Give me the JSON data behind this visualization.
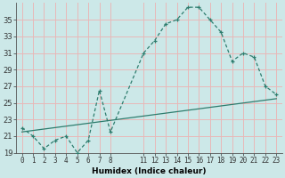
{
  "xlabel": "Humidex (Indice chaleur)",
  "bg_color": "#cce8e8",
  "grid_color": "#e8b8b8",
  "line_color": "#2e7d6e",
  "series1_x": [
    0,
    1,
    2,
    3,
    4,
    5,
    6,
    7,
    8,
    11,
    12,
    13,
    14,
    15,
    16,
    17,
    18,
    19,
    20,
    21,
    22,
    23
  ],
  "series1_y": [
    22.0,
    21.0,
    19.5,
    20.5,
    21.0,
    19.0,
    20.5,
    26.5,
    21.5,
    31.0,
    32.5,
    34.5,
    35.0,
    36.5,
    36.5,
    35.0,
    33.5,
    30.0,
    31.0,
    30.5,
    27.0,
    26.0
  ],
  "series2_x": [
    0,
    23
  ],
  "series2_y": [
    21.5,
    25.5
  ],
  "ylim_min": 19,
  "ylim_max": 37,
  "xlim_min": -0.5,
  "xlim_max": 23.5,
  "yticks": [
    19,
    21,
    23,
    25,
    27,
    29,
    31,
    33,
    35
  ],
  "xticks": [
    0,
    1,
    2,
    3,
    4,
    5,
    6,
    7,
    8,
    11,
    12,
    13,
    14,
    15,
    16,
    17,
    18,
    19,
    20,
    21,
    22,
    23
  ],
  "xlabel_fontsize": 6.5,
  "tick_fontsize": 5.5,
  "ytick_fontsize": 6.0
}
